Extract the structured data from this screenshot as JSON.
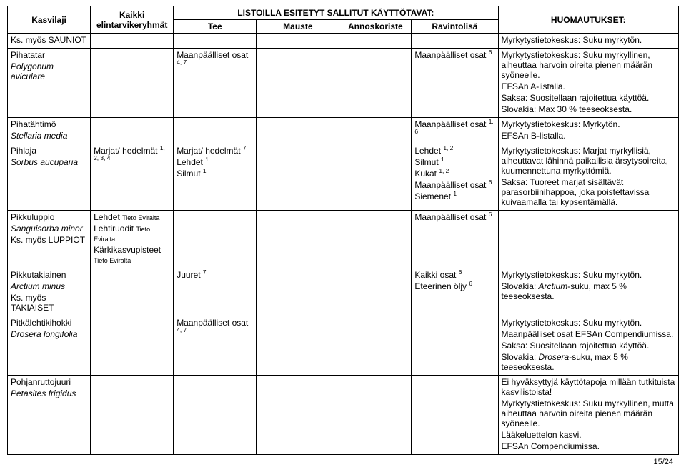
{
  "header": {
    "kasvilaji": "Kasvilaji",
    "kaikki_elintarvikeryhmat": "Kaikki elintarvikeryhmät",
    "listoilla": "LISTOILLA ESITETYT SALLITUT KÄYTTÖTAVAT:",
    "tee": "Tee",
    "mauste": "Mauste",
    "annoskoriste": "Annoskoriste",
    "ravintolisa": "Ravintolisä",
    "huomautukset": "HUOMAUTUKSET:"
  },
  "rows": {
    "r0": {
      "kasvilaji1": "Ks. myös SAUNIOT",
      "huom1": "Myrkytystietokeskus: Suku myrkytön."
    },
    "r1": {
      "kasvilaji1": "Pihatatar",
      "kasvilaji2": "Polygonum aviculare",
      "tee1": "Maanpäälliset osat ",
      "tee1_sup": "4, 7",
      "ravinto1": "Maanpäälliset osat ",
      "ravinto1_sup": "6",
      "huom1": "Myrkytystietokeskus: Suku myrkyllinen, aiheuttaa harvoin oireita pienen määrän syöneelle.",
      "huom2": "EFSAn A-listalla.",
      "huom3": "Saksa: Suositellaan rajoitettua käyttöä.",
      "huom4": "Slovakia: Max 30 % teeseoksesta."
    },
    "r2": {
      "kasvilaji1": "Pihatähtimö",
      "kasvilaji2": "Stellaria media",
      "ravinto1": "Maanpäälliset osat ",
      "ravinto1_sup": "1, 6",
      "huom1": "Myrkytystietokeskus: Myrkytön.",
      "huom2": "EFSAn B-listalla."
    },
    "r3": {
      "kasvilaji1": "Pihlaja",
      "kasvilaji2": "Sorbus aucuparia",
      "elintar1": "Marjat/ hedelmät ",
      "elintar1_sup": "1, 2, 3, 4",
      "tee1": "Marjat/ hedelmät ",
      "tee1_sup": "7",
      "tee2": "Lehdet ",
      "tee2_sup": "1",
      "tee3": "Silmut ",
      "tee3_sup": "1",
      "ravinto1": "Lehdet ",
      "ravinto1_sup": "1, 2",
      "ravinto2": "Silmut ",
      "ravinto2_sup": "1",
      "ravinto3": "Kukat ",
      "ravinto3_sup": "1, 2",
      "ravinto4": "Maanpäälliset osat ",
      "ravinto4_sup": "6",
      "ravinto5": "Siemenet ",
      "ravinto5_sup": "1",
      "huom1": "Myrkytystietokeskus: Marjat myrkyllisiä, aiheuttavat lähinnä paikallisia ärsytysoireita, kuumennettuna myrkyttömiä.",
      "huom2": "Saksa: Tuoreet marjat sisältävät parasorbiinihappoa, joka poistettavissa kuivaamalla tai kypsentämällä."
    },
    "r4": {
      "kasvilaji1": "Pikkuluppio",
      "kasvilaji2": "Sanguisorba minor",
      "kasvilaji3": "Ks. myös LUPPIOT",
      "elintar1": "Lehdet ",
      "elintar1_foot": "Tieto Eviralta",
      "elintar2": "Lehtiruodit ",
      "elintar2_foot": "Tieto Eviralta",
      "elintar3": "Kärkikasvupisteet ",
      "elintar3_foot": "Tieto Eviralta",
      "ravinto1": "Maanpäälliset osat ",
      "ravinto1_sup": "6"
    },
    "r5": {
      "kasvilaji1": "Pikkutakiainen",
      "kasvilaji2": "Arctium minus",
      "kasvilaji3": "Ks. myös TAKIAISET",
      "tee1": "Juuret ",
      "tee1_sup": "7",
      "ravinto1": "Kaikki osat ",
      "ravinto1_sup": "6",
      "ravinto2": "Eteerinen öljy ",
      "ravinto2_sup": "6",
      "huom1": "Myrkytystietokeskus: Suku myrkytön.",
      "huom2_a": "Slovakia: ",
      "huom2_b": "Arctium",
      "huom2_c": "-suku, max 5 % teeseoksesta."
    },
    "r6": {
      "kasvilaji1": "Pitkälehtikihokki",
      "kasvilaji2": "Drosera longifolia",
      "tee1": "Maanpäälliset osat ",
      "tee1_sup": "4, 7",
      "huom1": "Myrkytystietokeskus: Suku myrkytön.",
      "huom2": "Maanpäälliset osat EFSAn Compendiumissa.",
      "huom3": "Saksa: Suositellaan rajoitettua käyttöä.",
      "huom4_a": "Slovakia: ",
      "huom4_b": "Drosera",
      "huom4_c": "-suku, max 5 % teeseoksesta."
    },
    "r7": {
      "kasvilaji1": "Pohjanruttojuuri",
      "kasvilaji2": "Petasites frigidus",
      "huom1": "Ei hyväksyttyjä käyttötapoja millään tutkituista kasvilistoista!",
      "huom2": "Myrkytystietokeskus: Suku myrkyllinen, mutta aiheuttaa harvoin oireita pienen määrän syöneelle.",
      "huom3": "Lääkeluettelon kasvi.",
      "huom4": "EFSAn Compendiumissa."
    }
  },
  "pagenum": "15/24"
}
